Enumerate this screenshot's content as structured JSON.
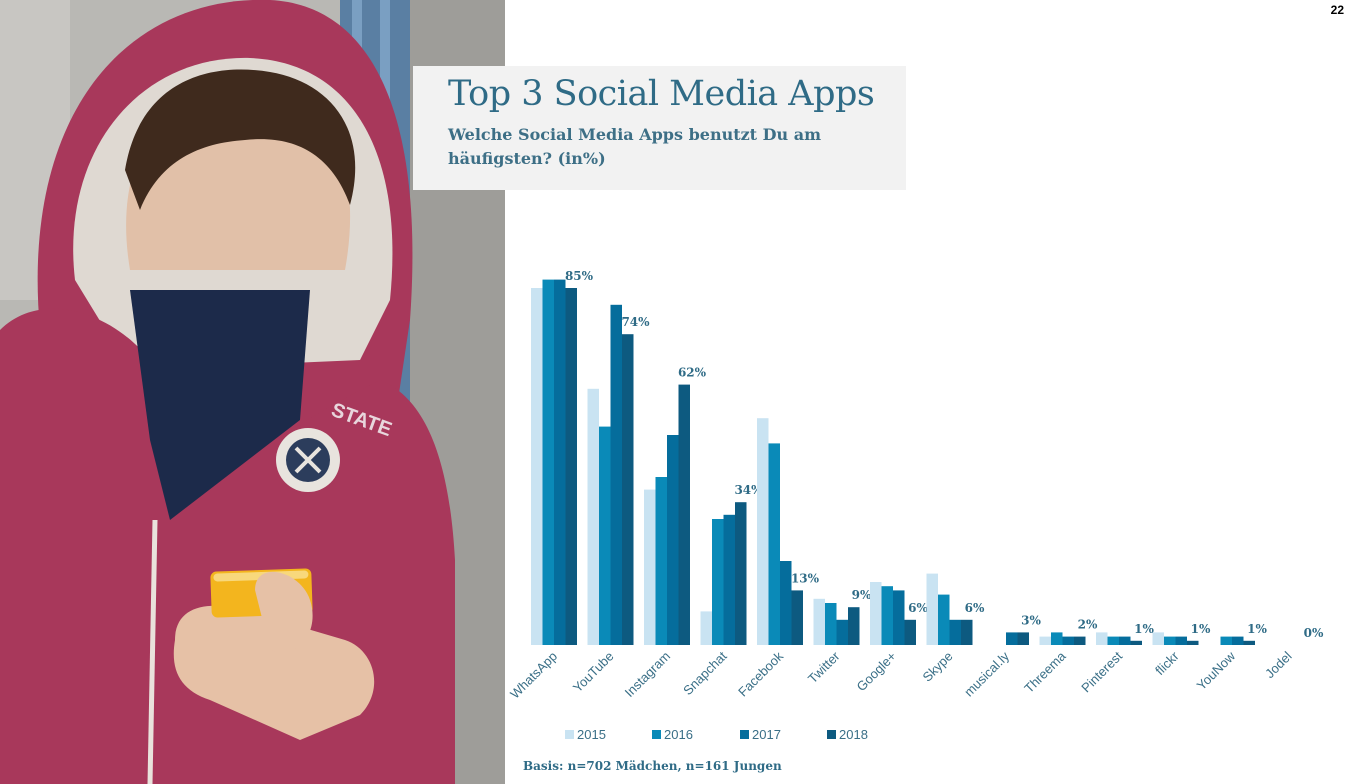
{
  "page_number": "22",
  "title": "Top 3 Social Media Apps",
  "subtitle": "Welche Social Media Apps benutzt Du am häufigsten? (in%)",
  "footnote": "Basis: n=702 Mädchen, n=161 Jungen",
  "photo": {
    "icon": "teen-with-smartphone-photo"
  },
  "colors": {
    "2015": "#c9e3f2",
    "2016": "#0a8ab8",
    "2017": "#056d9c",
    "2018": "#0d5a80",
    "title": "#2f6b86"
  },
  "chart_data": {
    "type": "bar",
    "categories": [
      "WhatsApp",
      "YouTube",
      "Instagram",
      "Snapchat",
      "Facebook",
      "Twitter",
      "Google+",
      "Skype",
      "musical.ly",
      "Threema",
      "Pinterest",
      "flickr",
      "YouNow",
      "Jodel"
    ],
    "series": [
      {
        "name": "2015",
        "values": [
          85,
          61,
          37,
          8,
          54,
          11,
          15,
          17,
          null,
          2,
          3,
          3,
          null,
          null
        ]
      },
      {
        "name": "2016",
        "values": [
          87,
          52,
          40,
          30,
          48,
          10,
          14,
          12,
          null,
          3,
          2,
          2,
          2,
          null
        ]
      },
      {
        "name": "2017",
        "values": [
          87,
          81,
          50,
          31,
          20,
          6,
          13,
          6,
          3,
          2,
          2,
          2,
          2,
          null
        ]
      },
      {
        "name": "2018",
        "values": [
          85,
          74,
          62,
          34,
          13,
          9,
          6,
          6,
          3,
          2,
          1,
          1,
          1,
          0
        ]
      }
    ],
    "data_labels": [
      "85%",
      "74%",
      "62%",
      "34%",
      "13%",
      "9%",
      "6%",
      "6%",
      "3%",
      "2%",
      "1%",
      "1%",
      "1%",
      "0%"
    ],
    "legend": [
      "2015",
      "2016",
      "2017",
      "2018"
    ],
    "legend_position": "bottom-left",
    "ylim": [
      0,
      100
    ],
    "grid": false
  }
}
